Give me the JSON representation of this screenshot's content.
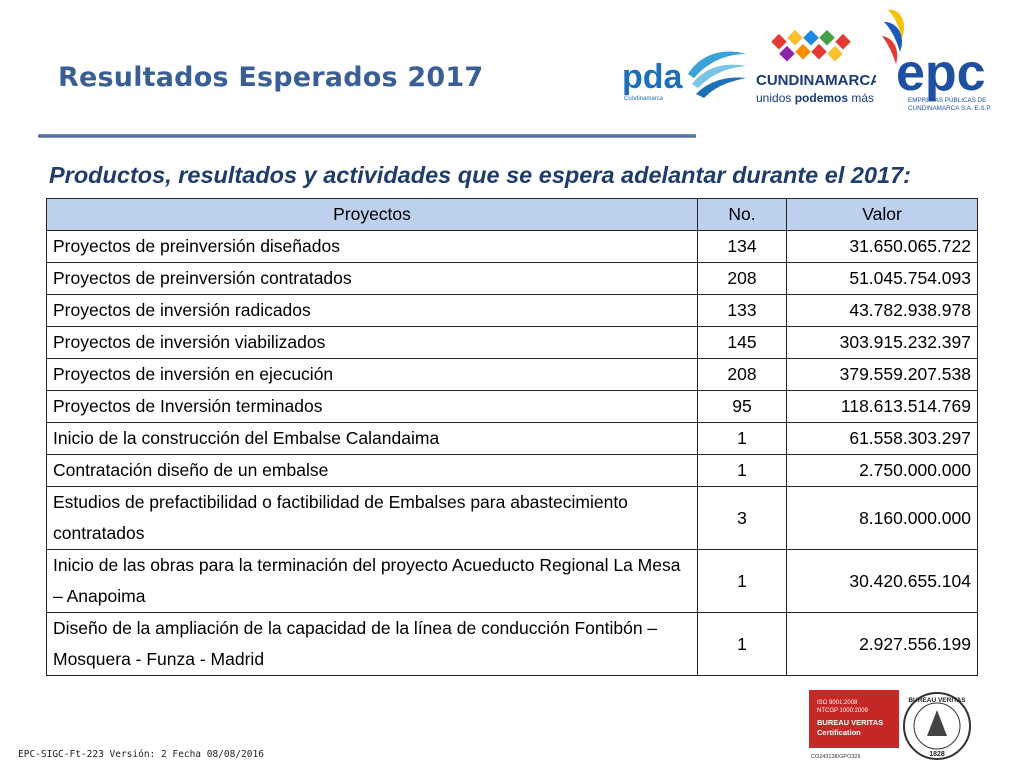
{
  "header": {
    "title": "Resultados Esperados 2017",
    "subtitle": "Productos, resultados y actividades que se espera adelantar durante el 2017:"
  },
  "logos": {
    "pda": {
      "text": "pda",
      "sub": "Cundinamarca"
    },
    "cundinamarca": {
      "name": "CUNDINAMARCA",
      "slogan_a": "unidos ",
      "slogan_b": "podemos",
      "slogan_c": " más"
    },
    "epc": {
      "text": "epc",
      "line1": "EMPRESAS PÚBLICAS DE",
      "line2": "CUNDINAMARCA S.A. E.S.P."
    }
  },
  "table": {
    "columns": [
      "Proyectos",
      "No.",
      "Valor"
    ],
    "rows": [
      {
        "name": "Proyectos de preinversión diseñados",
        "no": "134",
        "valor": "31.650.065.722"
      },
      {
        "name": "Proyectos de preinversión contratados",
        "no": "208",
        "valor": "51.045.754.093"
      },
      {
        "name": "Proyectos de inversión radicados",
        "no": "133",
        "valor": "43.782.938.978"
      },
      {
        "name": "Proyectos de inversión viabilizados",
        "no": "145",
        "valor": "303.915.232.397"
      },
      {
        "name": "Proyectos de inversión en ejecución",
        "no": "208",
        "valor": "379.559.207.538"
      },
      {
        "name": "Proyectos de Inversión terminados",
        "no": "95",
        "valor": "118.613.514.769"
      },
      {
        "name": "Inicio de la construcción del Embalse Calandaima",
        "no": "1",
        "valor": "61.558.303.297"
      },
      {
        "name": "Contratación diseño de un embalse",
        "no": "1",
        "valor": "2.750.000.000"
      },
      {
        "name": "Estudios de prefactibilidad o factibilidad de Embalses para abastecimiento contratados",
        "no": "3",
        "valor": "8.160.000.000"
      },
      {
        "name": "Inicio de las obras para la terminación del proyecto Acueducto Regional La Mesa – Anapoima",
        "no": "1",
        "valor": "30.420.655.104"
      },
      {
        "name": "Diseño de la ampliación de la capacidad de la línea de conducción Fontibón – Mosquera - Funza - Madrid",
        "no": "1",
        "valor": "2.927.556.199"
      }
    ]
  },
  "footer": {
    "code": "EPC-SIGC-Ft-223 Versión: 2 Fecha 08/08/2016"
  },
  "certification": {
    "line1": "ISO 9001:2008",
    "line2": "NTCGP 1000:2009",
    "line3": "BUREAU VERITAS",
    "line4": "Certification",
    "code": "CO243138/GPO326",
    "seal_text": "BUREAU VERITAS",
    "seal_year": "1828"
  }
}
